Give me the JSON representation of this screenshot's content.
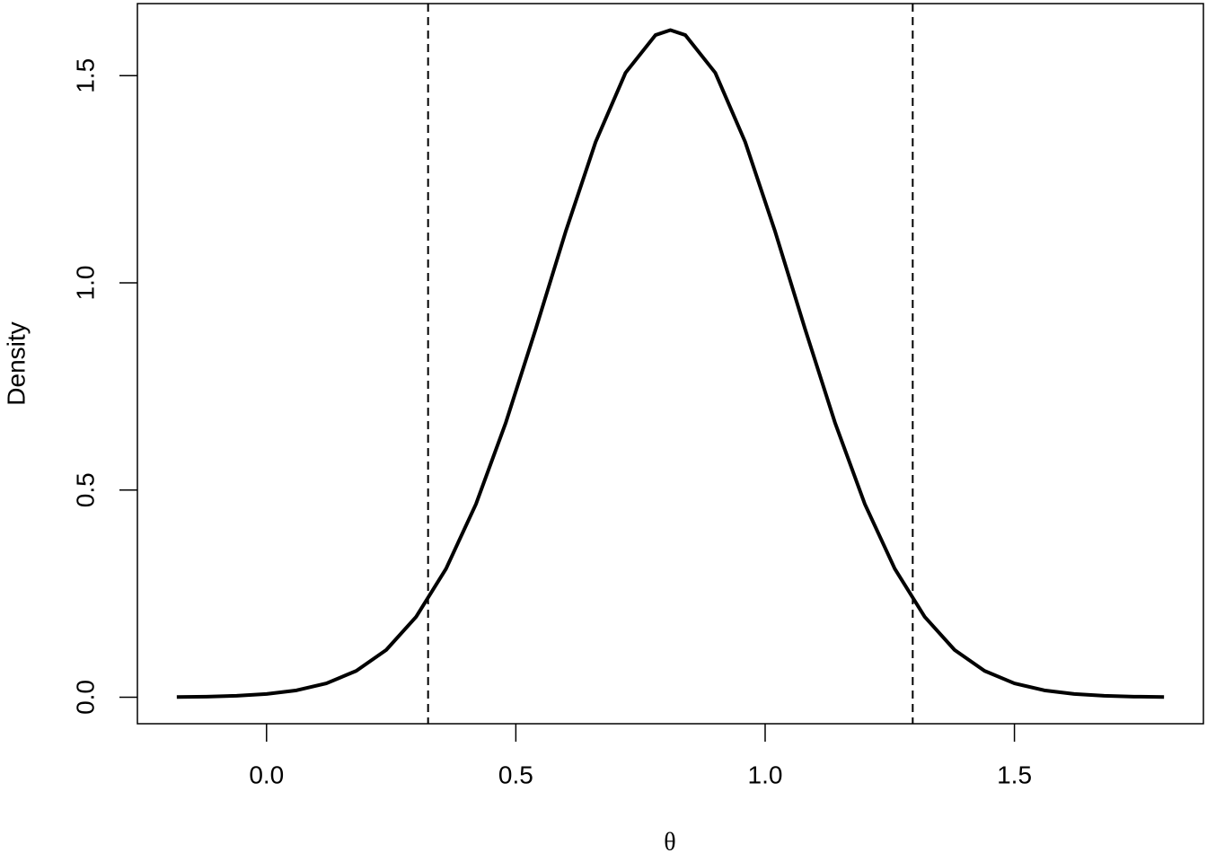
{
  "chart_data": {
    "type": "line",
    "xlabel": "θ",
    "ylabel": "Density",
    "x": [
      -0.18,
      -0.12,
      -0.06,
      0.0,
      0.06,
      0.12,
      0.18,
      0.24,
      0.3,
      0.36,
      0.42,
      0.48,
      0.54,
      0.6,
      0.66,
      0.72,
      0.78,
      0.81,
      0.84,
      0.9,
      0.96,
      1.02,
      1.08,
      1.14,
      1.2,
      1.26,
      1.32,
      1.38,
      1.44,
      1.5,
      1.56,
      1.62,
      1.68,
      1.74,
      1.8
    ],
    "y": [
      0.0006,
      0.0014,
      0.0034,
      0.0077,
      0.0165,
      0.0334,
      0.0636,
      0.114,
      0.194,
      0.31,
      0.466,
      0.663,
      0.889,
      1.124,
      1.34,
      1.507,
      1.598,
      1.61,
      1.598,
      1.507,
      1.34,
      1.124,
      0.889,
      0.663,
      0.466,
      0.31,
      0.194,
      0.114,
      0.0636,
      0.0334,
      0.0165,
      0.0077,
      0.0034,
      0.0014,
      0.0006
    ],
    "color": "#000000",
    "reference_lines": [
      0.324,
      1.296
    ],
    "xlim": [
      -0.259,
      1.879
    ],
    "ylim": [
      -0.064,
      1.674
    ],
    "xticks": [
      {
        "value": 0,
        "label": "0.0"
      },
      0.5,
      {
        "value": 1,
        "label": "1.0"
      },
      1.5
    ],
    "yticks": [
      {
        "value": 0,
        "label": "0.0"
      },
      0.5,
      {
        "value": 1,
        "label": "1.0"
      },
      1.5
    ]
  }
}
